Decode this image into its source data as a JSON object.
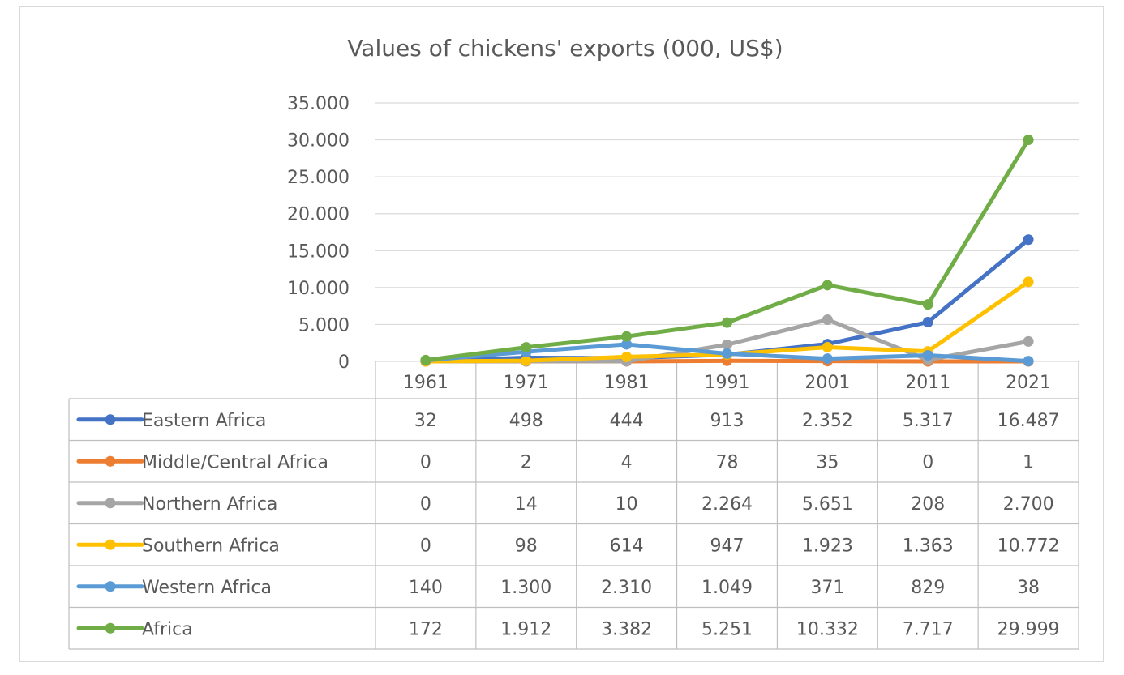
{
  "chart_data": {
    "type": "line",
    "title": "Values of chickens' exports (000, US$)",
    "categories": [
      "1961",
      "1971",
      "1981",
      "1991",
      "2001",
      "2011",
      "2021"
    ],
    "ylim": [
      0,
      35000
    ],
    "yticks": [
      0,
      5000,
      10000,
      15000,
      20000,
      25000,
      30000,
      35000
    ],
    "ytick_labels": [
      "0",
      "5.000",
      "10.000",
      "15.000",
      "20.000",
      "25.000",
      "30.000",
      "35.000"
    ],
    "grid": true,
    "legend": "data-table",
    "series": [
      {
        "name": "Eastern Africa",
        "color": "#4472c4",
        "values": [
          32,
          498,
          444,
          913,
          2352,
          5317,
          16487
        ],
        "labels": [
          "32",
          "498",
          "444",
          "913",
          "2.352",
          "5.317",
          "16.487"
        ]
      },
      {
        "name": "Middle/Central Africa",
        "color": "#ed7d31",
        "values": [
          0,
          2,
          4,
          78,
          35,
          0,
          1
        ],
        "labels": [
          "0",
          "2",
          "4",
          "78",
          "35",
          "0",
          "1"
        ]
      },
      {
        "name": "Northern Africa",
        "color": "#a5a5a5",
        "values": [
          0,
          14,
          10,
          2264,
          5651,
          208,
          2700
        ],
        "labels": [
          "0",
          "14",
          "10",
          "2.264",
          "5.651",
          "208",
          "2.700"
        ]
      },
      {
        "name": "Southern Africa",
        "color": "#ffc000",
        "values": [
          0,
          98,
          614,
          947,
          1923,
          1363,
          10772
        ],
        "labels": [
          "0",
          "98",
          "614",
          "947",
          "1.923",
          "1.363",
          "10.772"
        ]
      },
      {
        "name": "Western Africa",
        "color": "#5b9bd5",
        "values": [
          140,
          1300,
          2310,
          1049,
          371,
          829,
          38
        ],
        "labels": [
          "140",
          "1.300",
          "2.310",
          "1.049",
          "371",
          "829",
          "38"
        ]
      },
      {
        "name": "Africa",
        "color": "#70ad47",
        "values": [
          172,
          1912,
          3382,
          5251,
          10332,
          7717,
          29999
        ],
        "labels": [
          "172",
          "1.912",
          "3.382",
          "5.251",
          "10.332",
          "7.717",
          "29.999"
        ]
      }
    ]
  }
}
